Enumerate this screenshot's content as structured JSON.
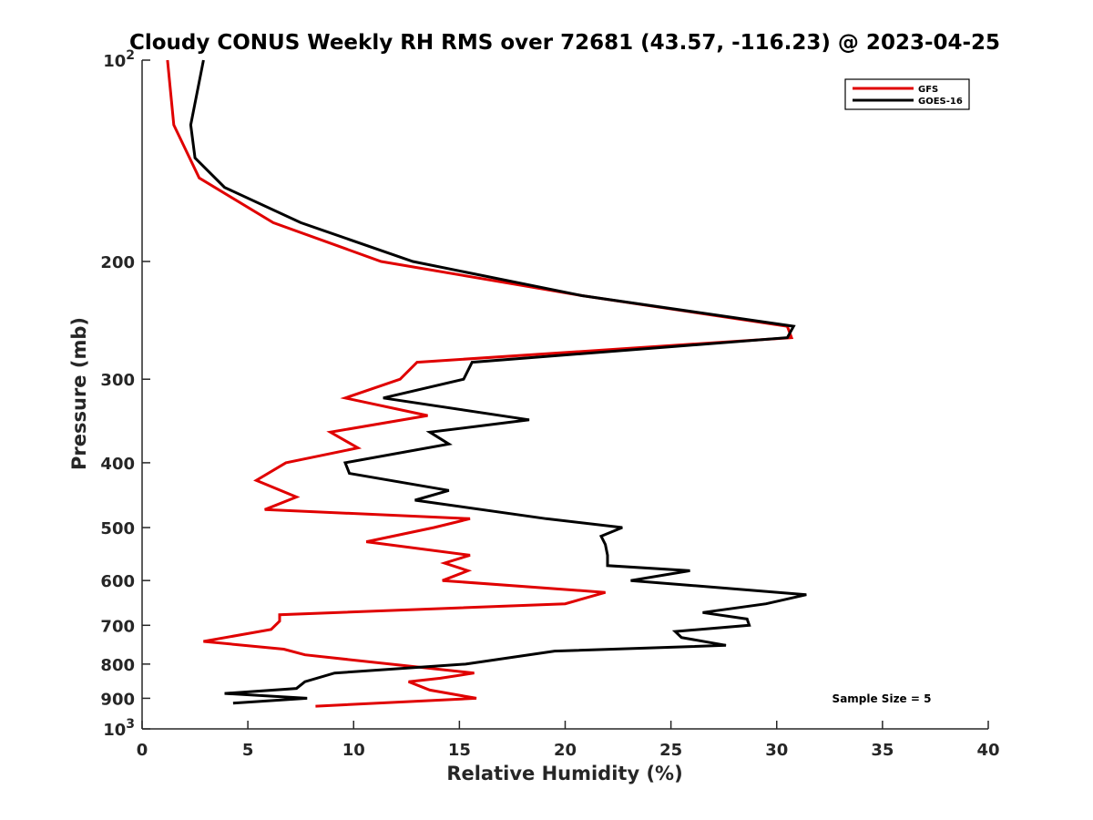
{
  "chart_data": {
    "type": "line",
    "title": "Cloudy CONUS Weekly RH RMS over 72681 (43.57, -116.23) @ 2023-04-25",
    "xlabel": "Relative Humidity (%)",
    "ylabel": "Pressure (mb)",
    "xlim": [
      0,
      40
    ],
    "ylim": [
      100,
      1000
    ],
    "y_scale": "log",
    "y_reversed": true,
    "x_ticks": [
      "0",
      "5",
      "10",
      "15",
      "20",
      "25",
      "30",
      "35",
      "40"
    ],
    "y_ticks": [
      {
        "value": 100,
        "label": "10",
        "sup": "2"
      },
      {
        "value": 200,
        "label": "200",
        "sup": ""
      },
      {
        "value": 300,
        "label": "300",
        "sup": ""
      },
      {
        "value": 400,
        "label": "400",
        "sup": ""
      },
      {
        "value": 500,
        "label": "500",
        "sup": ""
      },
      {
        "value": 600,
        "label": "600",
        "sup": ""
      },
      {
        "value": 700,
        "label": "700",
        "sup": ""
      },
      {
        "value": 800,
        "label": "800",
        "sup": ""
      },
      {
        "value": 900,
        "label": "900",
        "sup": ""
      },
      {
        "value": 1000,
        "label": "10",
        "sup": "3"
      }
    ],
    "grid": false,
    "legend_position": "top-right",
    "annotation": "Sample Size = 5",
    "series": [
      {
        "name": "GFS",
        "color": "#e00000",
        "points": [
          [
            1.2,
            100
          ],
          [
            1.5,
            125
          ],
          [
            2.7,
            150
          ],
          [
            6.2,
            175
          ],
          [
            11.3,
            200
          ],
          [
            20.8,
            225
          ],
          [
            30.5,
            250
          ],
          [
            30.7,
            260
          ],
          [
            13,
            283
          ],
          [
            12.2,
            300
          ],
          [
            9.6,
            320
          ],
          [
            13.5,
            340
          ],
          [
            8.9,
            360
          ],
          [
            10.2,
            380
          ],
          [
            6.8,
            400
          ],
          [
            5.4,
            425
          ],
          [
            7.3,
            450
          ],
          [
            5.8,
            470
          ],
          [
            15.5,
            485
          ],
          [
            13.8,
            500
          ],
          [
            10.6,
            525
          ],
          [
            15.5,
            550
          ],
          [
            14.3,
            565
          ],
          [
            15.4,
            580
          ],
          [
            14.2,
            600
          ],
          [
            21.9,
            625
          ],
          [
            20,
            650
          ],
          [
            6.5,
            675
          ],
          [
            6.5,
            690
          ],
          [
            6.1,
            710
          ],
          [
            2.9,
            740
          ],
          [
            6.7,
            760
          ],
          [
            7.7,
            775
          ],
          [
            13.3,
            810
          ],
          [
            15.7,
            825
          ],
          [
            14.1,
            840
          ],
          [
            12.6,
            850
          ],
          [
            13.6,
            875
          ],
          [
            15.8,
            900
          ],
          [
            8.2,
            925
          ]
        ]
      },
      {
        "name": "GOES-16",
        "color": "#000000",
        "points": [
          [
            2.9,
            100
          ],
          [
            2.3,
            125
          ],
          [
            2.5,
            140
          ],
          [
            3.9,
            155
          ],
          [
            7.5,
            175
          ],
          [
            12.8,
            200
          ],
          [
            20.8,
            225
          ],
          [
            30.8,
            250
          ],
          [
            30.5,
            260
          ],
          [
            15.6,
            283
          ],
          [
            15.2,
            300
          ],
          [
            11.4,
            320
          ],
          [
            18.3,
            345
          ],
          [
            13.6,
            360
          ],
          [
            14.5,
            375
          ],
          [
            9.6,
            400
          ],
          [
            9.8,
            415
          ],
          [
            14.5,
            440
          ],
          [
            12.9,
            455
          ],
          [
            19.1,
            485
          ],
          [
            22.7,
            500
          ],
          [
            21.7,
            515
          ],
          [
            21.9,
            530
          ],
          [
            22,
            550
          ],
          [
            22,
            570
          ],
          [
            25.9,
            580
          ],
          [
            23.1,
            600
          ],
          [
            31.4,
            630
          ],
          [
            29.5,
            650
          ],
          [
            26.5,
            670
          ],
          [
            28.6,
            685
          ],
          [
            28.7,
            700
          ],
          [
            25.2,
            715
          ],
          [
            25.5,
            730
          ],
          [
            27.6,
            750
          ],
          [
            19.5,
            765
          ],
          [
            15.3,
            800
          ],
          [
            9.1,
            825
          ],
          [
            7.7,
            850
          ],
          [
            7.3,
            870
          ],
          [
            3.9,
            885
          ],
          [
            7.8,
            900
          ],
          [
            4.3,
            915
          ]
        ]
      }
    ]
  }
}
